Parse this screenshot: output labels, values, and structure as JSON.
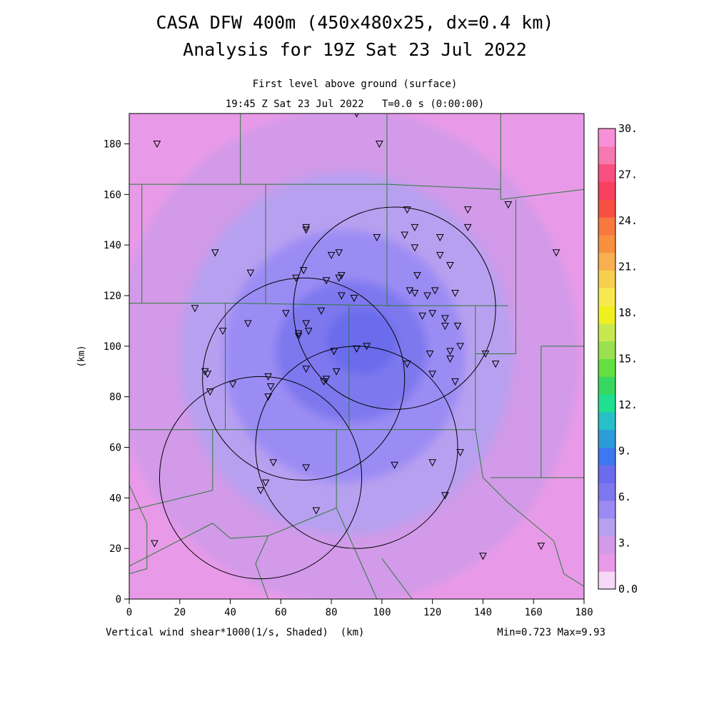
{
  "chart_data": {
    "type": "heatmap",
    "title": "CASA DFW 400m (450x480x25, dx=0.4 km)",
    "subtitle": "Analysis for 19Z Sat 23 Jul 2022",
    "level_label": "First level above ground (surface)",
    "time_label": "19:45 Z Sat 23 Jul 2022   T=0.0 s (0:00:00)",
    "xlabel": "(km)",
    "ylabel": "(km)",
    "field_label": "Vertical wind shear*1000(1/s, Shaded)  (km)",
    "minmax_label": "Min=0.723 Max=9.93",
    "xlim": [
      0,
      180
    ],
    "ylim": [
      0,
      192
    ],
    "x_ticks": [
      0,
      20,
      40,
      60,
      80,
      100,
      120,
      140,
      160,
      180
    ],
    "y_ticks": [
      0,
      20,
      40,
      60,
      80,
      100,
      120,
      140,
      160,
      180
    ],
    "grid": false,
    "colorbar": {
      "min": 0,
      "max": 30,
      "step": 1.5,
      "tick_labels": [
        "0.0",
        "3.",
        "6.",
        "9.",
        "12.",
        "15.",
        "18.",
        "21.",
        "24.",
        "27.",
        "30."
      ],
      "colors": [
        "#f7d8f7",
        "#e89ae8",
        "#d29ae8",
        "#b8a0f0",
        "#9b8cf4",
        "#7e78ee",
        "#6a6cec",
        "#3c78f0",
        "#2c9cd8",
        "#28c0c8",
        "#20e090",
        "#38d860",
        "#64e040",
        "#9ae050",
        "#c8e850",
        "#f0f020",
        "#f8e850",
        "#f8d050",
        "#f8b050",
        "#f89040",
        "#f87840",
        "#f85040",
        "#f84060",
        "#f85080",
        "#f878b0",
        "#f890d8"
      ]
    },
    "field": {
      "background_level": 1.5,
      "blobs": [
        {
          "cx": 87,
          "cy": 98,
          "rx": 118,
          "ry": 118,
          "level": 1.5
        },
        {
          "cx": 86,
          "cy": 96,
          "rx": 92,
          "ry": 98,
          "level": 3.0
        },
        {
          "cx": 86,
          "cy": 97,
          "rx": 66,
          "ry": 72,
          "level": 4.5
        },
        {
          "cx": 85,
          "cy": 96,
          "rx": 48,
          "ry": 50,
          "level": 6.0
        },
        {
          "cx": 88,
          "cy": 98,
          "rx": 30,
          "ry": 28,
          "level": 7.5
        },
        {
          "cx": 92,
          "cy": 102,
          "rx": 14,
          "ry": 13,
          "level": 9.0
        }
      ]
    },
    "radar_rings": [
      {
        "cx": 105,
        "cy": 115,
        "r": 40
      },
      {
        "cx": 69,
        "cy": 87,
        "r": 40
      },
      {
        "cx": 52,
        "cy": 48,
        "r": 40
      },
      {
        "cx": 90,
        "cy": 60,
        "r": 40
      }
    ],
    "stations": [
      [
        11,
        180
      ],
      [
        90,
        192
      ],
      [
        99,
        180
      ],
      [
        110,
        154
      ],
      [
        134,
        154
      ],
      [
        150,
        156
      ],
      [
        113,
        147
      ],
      [
        134,
        147
      ],
      [
        70,
        147
      ],
      [
        70,
        146
      ],
      [
        98,
        143
      ],
      [
        109,
        144
      ],
      [
        123,
        143
      ],
      [
        34,
        137
      ],
      [
        83,
        137
      ],
      [
        80,
        136
      ],
      [
        113,
        139
      ],
      [
        123,
        136
      ],
      [
        127,
        132
      ],
      [
        169,
        137
      ],
      [
        48,
        129
      ],
      [
        69,
        130
      ],
      [
        66,
        127
      ],
      [
        84,
        128
      ],
      [
        83,
        127
      ],
      [
        78,
        126
      ],
      [
        114,
        128
      ],
      [
        111,
        122
      ],
      [
        113,
        121
      ],
      [
        118,
        120
      ],
      [
        121,
        122
      ],
      [
        129,
        121
      ],
      [
        84,
        120
      ],
      [
        89,
        119
      ],
      [
        26,
        115
      ],
      [
        37,
        106
      ],
      [
        47,
        109
      ],
      [
        62,
        113
      ],
      [
        70,
        109
      ],
      [
        76,
        114
      ],
      [
        67,
        105
      ],
      [
        67,
        104
      ],
      [
        71,
        106
      ],
      [
        116,
        112
      ],
      [
        120,
        113
      ],
      [
        125,
        111
      ],
      [
        125,
        108
      ],
      [
        130,
        108
      ],
      [
        119,
        97
      ],
      [
        127,
        98
      ],
      [
        131,
        100
      ],
      [
        141,
        97
      ],
      [
        145,
        93
      ],
      [
        127,
        95
      ],
      [
        110,
        93
      ],
      [
        81,
        98
      ],
      [
        90,
        99
      ],
      [
        94,
        100
      ],
      [
        30,
        90
      ],
      [
        31,
        89
      ],
      [
        70,
        91
      ],
      [
        82,
        90
      ],
      [
        120,
        89
      ],
      [
        129,
        86
      ],
      [
        32,
        82
      ],
      [
        41,
        85
      ],
      [
        55,
        88
      ],
      [
        78,
        87
      ],
      [
        77,
        86
      ],
      [
        56,
        84
      ],
      [
        55,
        80
      ],
      [
        131,
        58
      ],
      [
        57,
        54
      ],
      [
        70,
        52
      ],
      [
        105,
        53
      ],
      [
        120,
        54
      ],
      [
        54,
        46
      ],
      [
        52,
        43
      ],
      [
        125,
        41
      ],
      [
        74,
        35
      ],
      [
        10,
        22
      ],
      [
        140,
        17
      ],
      [
        163,
        21
      ]
    ],
    "county_lines": [
      [
        [
          44,
          192
        ],
        [
          44,
          164
        ]
      ],
      [
        [
          102,
          192
        ],
        [
          102,
          164
        ]
      ],
      [
        [
          147,
          192
        ],
        [
          147,
          158
        ]
      ],
      [
        [
          0,
          164
        ],
        [
          44,
          164
        ]
      ],
      [
        [
          44,
          164
        ],
        [
          102,
          164
        ]
      ],
      [
        [
          102,
          164
        ],
        [
          147,
          162
        ]
      ],
      [
        [
          147,
          158
        ],
        [
          180,
          162
        ]
      ],
      [
        [
          5,
          164
        ],
        [
          5,
          117
        ]
      ],
      [
        [
          0,
          117
        ],
        [
          40,
          117
        ]
      ],
      [
        [
          40,
          117
        ],
        [
          104,
          116
        ]
      ],
      [
        [
          104,
          116
        ],
        [
          150,
          116
        ]
      ],
      [
        [
          54,
          164
        ],
        [
          54,
          117
        ]
      ],
      [
        [
          102,
          164
        ],
        [
          102,
          116
        ]
      ],
      [
        [
          38,
          117
        ],
        [
          38,
          67
        ]
      ],
      [
        [
          0,
          67
        ],
        [
          38,
          67
        ]
      ],
      [
        [
          38,
          67
        ],
        [
          87,
          67
        ]
      ],
      [
        [
          87,
          67
        ],
        [
          137,
          67
        ]
      ],
      [
        [
          87,
          116
        ],
        [
          87,
          67
        ]
      ],
      [
        [
          137,
          116
        ],
        [
          137,
          67
        ]
      ],
      [
        [
          137,
          97
        ],
        [
          153,
          97
        ]
      ],
      [
        [
          153,
          116
        ],
        [
          153,
          97
        ]
      ],
      [
        [
          153,
          158
        ],
        [
          153,
          116
        ]
      ],
      [
        [
          163,
          100
        ],
        [
          180,
          100
        ]
      ],
      [
        [
          163,
          100
        ],
        [
          163,
          48
        ]
      ],
      [
        [
          143,
          48
        ],
        [
          180,
          48
        ]
      ],
      [
        [
          33,
          67
        ],
        [
          33,
          43
        ]
      ],
      [
        [
          33,
          43
        ],
        [
          0,
          35
        ]
      ],
      [
        [
          0,
          45
        ],
        [
          7,
          30
        ]
      ],
      [
        [
          7,
          30
        ],
        [
          7,
          12
        ]
      ],
      [
        [
          7,
          12
        ],
        [
          0,
          10
        ]
      ],
      [
        [
          33,
          30
        ],
        [
          0,
          13
        ]
      ],
      [
        [
          33,
          30
        ],
        [
          40,
          24
        ]
      ],
      [
        [
          40,
          24
        ],
        [
          55,
          25
        ]
      ],
      [
        [
          55,
          25
        ],
        [
          82,
          36
        ]
      ],
      [
        [
          82,
          67
        ],
        [
          82,
          36
        ]
      ],
      [
        [
          82,
          36
        ],
        [
          98,
          0
        ]
      ],
      [
        [
          55,
          25
        ],
        [
          50,
          14
        ]
      ],
      [
        [
          50,
          14
        ],
        [
          55,
          0
        ]
      ],
      [
        [
          137,
          67
        ],
        [
          140,
          48
        ]
      ],
      [
        [
          140,
          48
        ],
        [
          150,
          38
        ]
      ],
      [
        [
          150,
          38
        ],
        [
          168,
          23
        ]
      ],
      [
        [
          168,
          23
        ],
        [
          172,
          10
        ]
      ],
      [
        [
          172,
          10
        ],
        [
          180,
          5
        ]
      ],
      [
        [
          100,
          16
        ],
        [
          112,
          0
        ]
      ]
    ]
  }
}
